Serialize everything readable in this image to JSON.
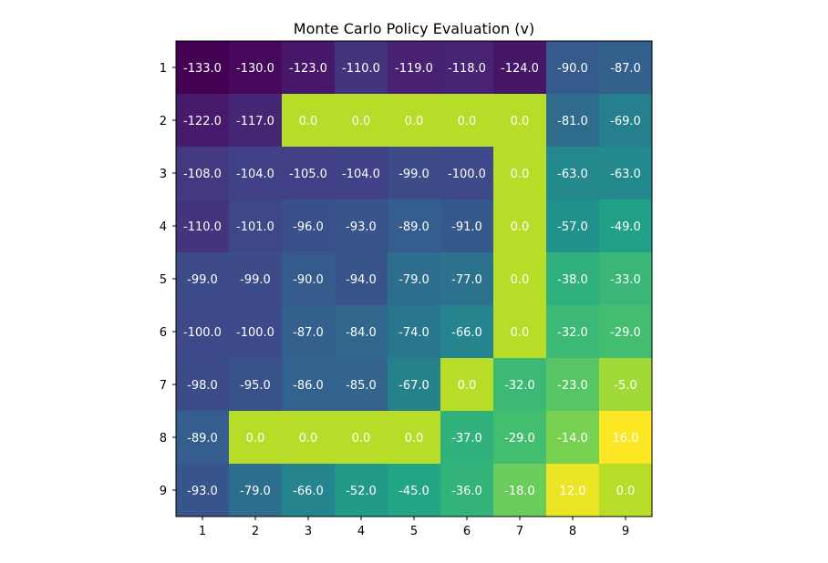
{
  "chart_data": {
    "type": "heatmap",
    "title": "Monte Carlo Policy Evaluation (v)",
    "x_tick_labels": [
      "1",
      "2",
      "3",
      "4",
      "5",
      "6",
      "7",
      "8",
      "9"
    ],
    "y_tick_labels": [
      "1",
      "2",
      "3",
      "4",
      "5",
      "6",
      "7",
      "8",
      "9"
    ],
    "colormap": "viridis",
    "value_range": [
      -133.0,
      16.0
    ],
    "grid": false,
    "values": [
      [
        -133.0,
        -130.0,
        -123.0,
        -110.0,
        -119.0,
        -118.0,
        -124.0,
        -90.0,
        -87.0
      ],
      [
        -122.0,
        -117.0,
        0.0,
        0.0,
        0.0,
        0.0,
        0.0,
        -81.0,
        -69.0
      ],
      [
        -108.0,
        -104.0,
        -105.0,
        -104.0,
        -99.0,
        -100.0,
        0.0,
        -63.0,
        -63.0
      ],
      [
        -110.0,
        -101.0,
        -96.0,
        -93.0,
        -89.0,
        -91.0,
        0.0,
        -57.0,
        -49.0
      ],
      [
        -99.0,
        -99.0,
        -90.0,
        -94.0,
        -79.0,
        -77.0,
        0.0,
        -38.0,
        -33.0
      ],
      [
        -100.0,
        -100.0,
        -87.0,
        -84.0,
        -74.0,
        -66.0,
        0.0,
        -32.0,
        -29.0
      ],
      [
        -98.0,
        -95.0,
        -86.0,
        -85.0,
        -67.0,
        0.0,
        -32.0,
        -23.0,
        -5.0
      ],
      [
        -89.0,
        0.0,
        0.0,
        0.0,
        0.0,
        -37.0,
        -29.0,
        -14.0,
        16.0
      ],
      [
        -93.0,
        -79.0,
        -66.0,
        -52.0,
        -45.0,
        -36.0,
        -18.0,
        12.0,
        0.0
      ]
    ],
    "cell_labels": [
      [
        "-133.0",
        "-130.0",
        "-123.0",
        "-110.0",
        "-119.0",
        "-118.0",
        "-124.0",
        "-90.0",
        "-87.0"
      ],
      [
        "-122.0",
        "-117.0",
        "0.0",
        "0.0",
        "0.0",
        "0.0",
        "0.0",
        "-81.0",
        "-69.0"
      ],
      [
        "-108.0",
        "-104.0",
        "-105.0",
        "-104.0",
        "-99.0",
        "-100.0",
        "0.0",
        "-63.0",
        "-63.0"
      ],
      [
        "-110.0",
        "-101.0",
        "-96.0",
        "-93.0",
        "-89.0",
        "-91.0",
        "0.0",
        "-57.0",
        "-49.0"
      ],
      [
        "-99.0",
        "-99.0",
        "-90.0",
        "-94.0",
        "-79.0",
        "-77.0",
        "0.0",
        "-38.0",
        "-33.0"
      ],
      [
        "-100.0",
        "-100.0",
        "-87.0",
        "-84.0",
        "-74.0",
        "-66.0",
        "0.0",
        "-32.0",
        "-29.0"
      ],
      [
        "-98.0",
        "-95.0",
        "-86.0",
        "-85.0",
        "-67.0",
        "0.0",
        "-32.0",
        "-23.0",
        "-5.0"
      ],
      [
        "-89.0",
        "0.0",
        "0.0",
        "0.0",
        "0.0",
        "-37.0",
        "-29.0",
        "-14.0",
        "16.0"
      ],
      [
        "-93.0",
        "-79.0",
        "-66.0",
        "-52.0",
        "-45.0",
        "-36.0",
        "-18.0",
        "12.0",
        "0.0"
      ]
    ]
  }
}
